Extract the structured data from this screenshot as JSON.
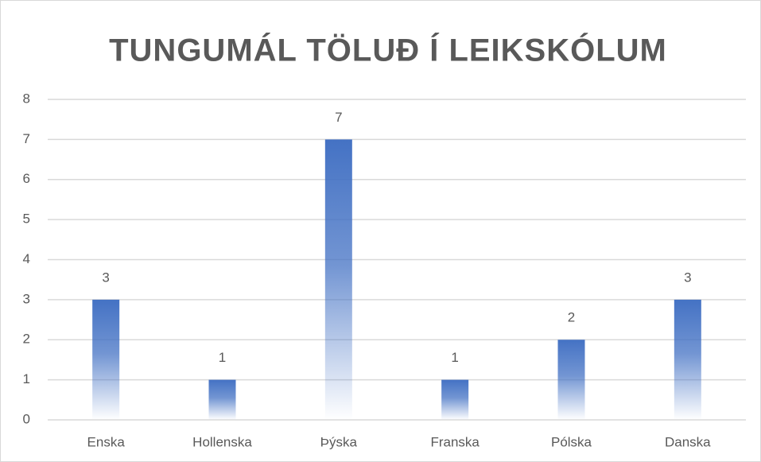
{
  "chart_data": {
    "type": "bar",
    "title": "TUNGUMÁL TÖLUÐ Í LEIKSKÓLUM",
    "categories": [
      "Enska",
      "Hollenska",
      "Þýska",
      "Franska",
      "Pólska",
      "Danska"
    ],
    "values": [
      3,
      1,
      7,
      1,
      2,
      3
    ],
    "color": "#4472c4",
    "ylim": [
      0,
      8
    ],
    "yticks": [
      0,
      1,
      2,
      3,
      4,
      5,
      6,
      7,
      8
    ],
    "grid": true
  }
}
